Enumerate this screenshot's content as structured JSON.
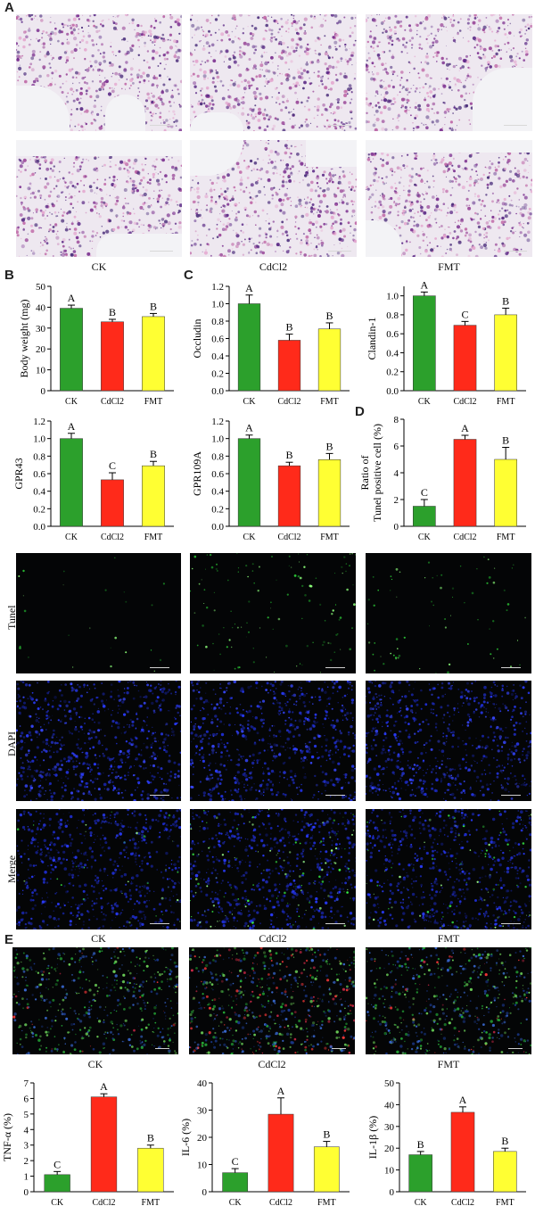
{
  "panel_letters": [
    "A",
    "B",
    "C",
    "D",
    "E"
  ],
  "groups": [
    "CK",
    "CdCl2",
    "FMT"
  ],
  "fluor_rows": [
    "Tunel",
    "DAPI",
    "Merge"
  ],
  "colors": {
    "CK": "#2ca02c",
    "CdCl2": "#ff2a1a",
    "FMT": "#ffff33"
  },
  "chart_data": [
    {
      "id": "body-weight",
      "type": "bar",
      "categories": [
        "CK",
        "CdCl2",
        "FMT"
      ],
      "values": [
        39.5,
        33,
        35.5
      ],
      "errors": [
        1.5,
        1.2,
        1.5
      ],
      "letters": [
        "A",
        "B",
        "B"
      ],
      "ylabel": "Body weight (mg)",
      "ylim": [
        0,
        50
      ],
      "yticks": [
        0,
        10,
        20,
        30,
        40,
        50
      ]
    },
    {
      "id": "occludin",
      "type": "bar",
      "categories": [
        "CK",
        "CdCl2",
        "FMT"
      ],
      "values": [
        1.0,
        0.58,
        0.71
      ],
      "errors": [
        0.1,
        0.07,
        0.07
      ],
      "letters": [
        "A",
        "B",
        "B"
      ],
      "ylabel": "Occludin",
      "ylim": [
        0,
        1.2
      ],
      "yticks": [
        0.0,
        0.2,
        0.4,
        0.6,
        0.8,
        1.0,
        1.2
      ]
    },
    {
      "id": "claudin1",
      "type": "bar",
      "categories": [
        "CK",
        "CdCl2",
        "FMT"
      ],
      "values": [
        1.0,
        0.69,
        0.8
      ],
      "errors": [
        0.04,
        0.04,
        0.07
      ],
      "letters": [
        "A",
        "C",
        "B"
      ],
      "ylabel": "Clandin-1",
      "ylim": [
        0,
        1.1
      ],
      "yticks": [
        0.0,
        0.2,
        0.4,
        0.6,
        0.8,
        1.0
      ]
    },
    {
      "id": "gpr43",
      "type": "bar",
      "categories": [
        "CK",
        "CdCl2",
        "FMT"
      ],
      "values": [
        1.0,
        0.53,
        0.69
      ],
      "errors": [
        0.06,
        0.08,
        0.05
      ],
      "letters": [
        "A",
        "C",
        "B"
      ],
      "ylabel": "GPR43",
      "ylim": [
        0,
        1.2
      ],
      "yticks": [
        0.0,
        0.2,
        0.4,
        0.6,
        0.8,
        1.0,
        1.2
      ]
    },
    {
      "id": "gpr109a",
      "type": "bar",
      "categories": [
        "CK",
        "CdCl2",
        "FMT"
      ],
      "values": [
        1.0,
        0.69,
        0.76
      ],
      "errors": [
        0.04,
        0.04,
        0.07
      ],
      "letters": [
        "A",
        "B",
        "B"
      ],
      "ylabel": "GPR109A",
      "ylim": [
        0,
        1.2
      ],
      "yticks": [
        0.0,
        0.2,
        0.4,
        0.6,
        0.8,
        1.0,
        1.2
      ]
    },
    {
      "id": "tunel-ratio",
      "type": "bar",
      "categories": [
        "CK",
        "CdCl2",
        "FMT"
      ],
      "values": [
        1.5,
        6.5,
        5.0
      ],
      "errors": [
        0.5,
        0.3,
        0.9
      ],
      "letters": [
        "C",
        "A",
        "B"
      ],
      "ylabel": "Ratio of Tunel positive cell (%)",
      "ylim": [
        0,
        8
      ],
      "yticks": [
        0,
        2,
        4,
        6,
        8
      ]
    },
    {
      "id": "tnf-alpha",
      "type": "bar",
      "categories": [
        "CK",
        "CdCl2",
        "FMT"
      ],
      "values": [
        1.1,
        6.1,
        2.8
      ],
      "errors": [
        0.2,
        0.2,
        0.2
      ],
      "letters": [
        "C",
        "A",
        "B"
      ],
      "ylabel": "TNF-α (%)",
      "ylim": [
        0,
        7
      ],
      "yticks": [
        0,
        1,
        2,
        3,
        4,
        5,
        6,
        7
      ]
    },
    {
      "id": "il-6",
      "type": "bar",
      "categories": [
        "CK",
        "CdCl2",
        "FMT"
      ],
      "values": [
        7,
        28.5,
        16.5
      ],
      "errors": [
        1.5,
        6,
        2
      ],
      "letters": [
        "C",
        "A",
        "B"
      ],
      "ylabel": "IL-6 (%)",
      "ylim": [
        0,
        40
      ],
      "yticks": [
        0,
        10,
        20,
        30,
        40
      ]
    },
    {
      "id": "il-1b",
      "type": "bar",
      "categories": [
        "CK",
        "CdCl2",
        "FMT"
      ],
      "values": [
        17,
        36.5,
        18.5
      ],
      "errors": [
        1.5,
        2.5,
        1.5
      ],
      "letters": [
        "B",
        "A",
        "B"
      ],
      "ylabel": "IL-1β (%)",
      "ylim": [
        0,
        50
      ],
      "yticks": [
        0,
        10,
        20,
        30,
        40,
        50
      ]
    }
  ]
}
